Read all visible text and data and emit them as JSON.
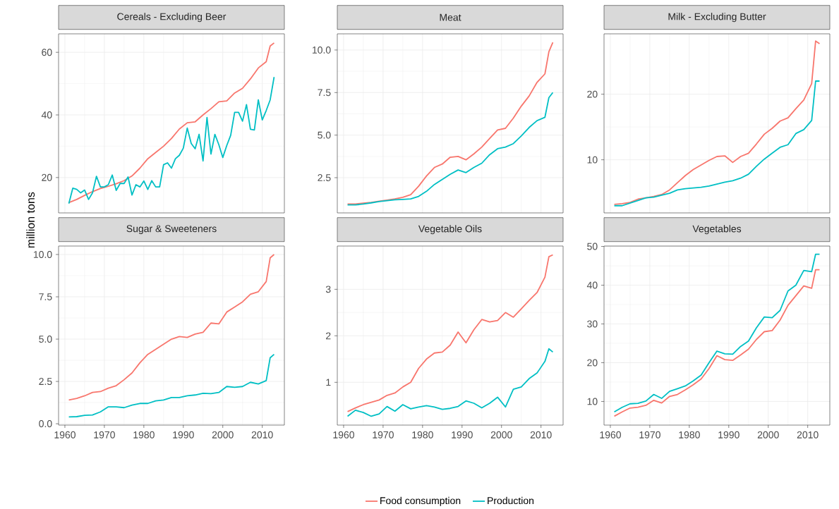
{
  "chart_data": [
    {
      "type": "line",
      "title": "Cereals - Excluding Beer",
      "ylabel": "million tons",
      "x": [
        1961,
        1963,
        1965,
        1967,
        1969,
        1971,
        1973,
        1975,
        1977,
        1979,
        1981,
        1983,
        1985,
        1987,
        1989,
        1991,
        1993,
        1995,
        1997,
        1999,
        2001,
        2003,
        2005,
        2007,
        2009,
        2011,
        2012,
        2013
      ],
      "xlim": [
        1958.4,
        2015.6
      ],
      "xticks": [
        1960,
        1970,
        1980,
        1990,
        2000,
        2010
      ],
      "ylim": [
        8.7,
        65.9
      ],
      "yticks": [
        20,
        40,
        60
      ],
      "grid": true,
      "tick_labels": "y",
      "series": [
        {
          "color": "#F8766D",
          "values": [
            12,
            13,
            14.3,
            15.5,
            16.5,
            17.2,
            18,
            19,
            20.5,
            23,
            26,
            28,
            30,
            32.5,
            35.5,
            37.5,
            37.8,
            40,
            42,
            44.2,
            44.5,
            47,
            48.5,
            51.5,
            55,
            57,
            62,
            63
          ]
        },
        {
          "color": "#00BFC4",
          "x": [
            1961,
            1962,
            1963,
            1964,
            1965,
            1966,
            1967,
            1968,
            1969,
            1970,
            1971,
            1972,
            1973,
            1974,
            1975,
            1976,
            1977,
            1978,
            1979,
            1980,
            1981,
            1982,
            1983,
            1984,
            1985,
            1986,
            1987,
            1988,
            1989,
            1990,
            1991,
            1992,
            1993,
            1994,
            1995,
            1996,
            1997,
            1998,
            1999,
            2000,
            2001,
            2002,
            2003,
            2004,
            2005,
            2006,
            2007,
            2008,
            2009,
            2010,
            2011,
            2012,
            2013
          ],
          "values": [
            11.7,
            16.6,
            16.2,
            15.1,
            16,
            13,
            15.1,
            20.4,
            17,
            17,
            17.7,
            20.8,
            15.9,
            18.1,
            18.1,
            20.2,
            14.4,
            17.7,
            17,
            18.9,
            16.2,
            19,
            17,
            17,
            24.1,
            24.7,
            23,
            26,
            27.1,
            29.4,
            35.8,
            30.9,
            29.2,
            33.8,
            25.3,
            39.2,
            27.5,
            33.8,
            30.5,
            26.4,
            30.2,
            33.5,
            40.8,
            40.8,
            38,
            43.3,
            35.4,
            35.2,
            44.8,
            38.4,
            41.4,
            44.8,
            52.1
          ]
        }
      ]
    },
    {
      "type": "line",
      "title": "Meat",
      "x": [
        1961,
        1963,
        1965,
        1967,
        1969,
        1971,
        1973,
        1975,
        1977,
        1979,
        1981,
        1983,
        1985,
        1987,
        1989,
        1991,
        1993,
        1995,
        1997,
        1999,
        2001,
        2003,
        2005,
        2007,
        2009,
        2011,
        2012,
        2013
      ],
      "xlim": [
        1958.4,
        2015.6
      ],
      "xticks": [
        1960,
        1970,
        1980,
        1990,
        2000,
        2010
      ],
      "ylim": [
        0.43,
        10.95
      ],
      "yticks": [
        2.5,
        {
          "value": 5,
          "label": "5.0"
        },
        7.5,
        {
          "value": 10,
          "label": "10.0"
        }
      ],
      "grid": true,
      "tick_labels": "y",
      "series": [
        {
          "color": "#F8766D",
          "values": [
            0.95,
            0.95,
            1.0,
            1.05,
            1.12,
            1.18,
            1.25,
            1.35,
            1.5,
            2.0,
            2.6,
            3.1,
            3.3,
            3.7,
            3.75,
            3.55,
            3.9,
            4.3,
            4.8,
            5.3,
            5.4,
            6.0,
            6.7,
            7.3,
            8.1,
            8.6,
            9.9,
            10.45
          ]
        },
        {
          "color": "#00BFC4",
          "values": [
            0.9,
            0.9,
            0.95,
            1.02,
            1.1,
            1.15,
            1.2,
            1.22,
            1.25,
            1.4,
            1.7,
            2.1,
            2.4,
            2.7,
            2.95,
            2.8,
            3.1,
            3.35,
            3.85,
            4.2,
            4.3,
            4.5,
            4.95,
            5.45,
            5.85,
            6.05,
            7.2,
            7.5
          ]
        }
      ]
    },
    {
      "type": "line",
      "title": "Milk - Excluding Butter",
      "x": [
        1961,
        1963,
        1965,
        1967,
        1969,
        1971,
        1973,
        1975,
        1977,
        1979,
        1981,
        1983,
        1985,
        1987,
        1989,
        1991,
        1993,
        1995,
        1997,
        1999,
        2001,
        2003,
        2005,
        2007,
        2009,
        2011,
        2012,
        2013
      ],
      "xlim": [
        1958.4,
        2015.6
      ],
      "xticks": [
        1960,
        1970,
        1980,
        1990,
        2000,
        2010
      ],
      "ylim": [
        1.9,
        29.2
      ],
      "yticks": [
        10,
        20
      ],
      "grid": true,
      "tick_labels": "y",
      "series": [
        {
          "color": "#F8766D",
          "values": [
            3.2,
            3.3,
            3.5,
            4.0,
            4.2,
            4.4,
            4.7,
            5.4,
            6.5,
            7.6,
            8.5,
            9.2,
            9.9,
            10.5,
            10.6,
            9.6,
            10.5,
            11,
            12.4,
            13.9,
            14.8,
            15.9,
            16.4,
            17.8,
            19.1,
            21.6,
            28.1,
            27.7
          ]
        },
        {
          "color": "#00BFC4",
          "values": [
            3.0,
            3.0,
            3.4,
            3.8,
            4.2,
            4.3,
            4.6,
            4.9,
            5.4,
            5.6,
            5.7,
            5.8,
            6.0,
            6.3,
            6.6,
            6.8,
            7.2,
            7.8,
            9.0,
            10.1,
            11.0,
            11.9,
            12.3,
            14.0,
            14.6,
            16.0,
            22.0,
            22.0
          ]
        }
      ]
    },
    {
      "type": "line",
      "title": "Sugar & Sweeteners",
      "x": [
        1961,
        1963,
        1965,
        1967,
        1969,
        1971,
        1973,
        1975,
        1977,
        1979,
        1981,
        1983,
        1985,
        1987,
        1989,
        1991,
        1993,
        1995,
        1997,
        1999,
        2001,
        2003,
        2005,
        2007,
        2009,
        2011,
        2012,
        2013
      ],
      "xlim": [
        1958.4,
        2015.6
      ],
      "xticks": [
        1960,
        1970,
        1980,
        1990,
        2000,
        2010
      ],
      "ylim": [
        -0.08,
        10.5
      ],
      "yticks": [
        {
          "value": 0,
          "label": "0.0"
        },
        2.5,
        {
          "value": 5,
          "label": "5.0"
        },
        7.5,
        {
          "value": 10,
          "label": "10.0"
        }
      ],
      "grid": true,
      "series": [
        {
          "color": "#F8766D",
          "values": [
            1.4,
            1.5,
            1.65,
            1.85,
            1.9,
            2.1,
            2.25,
            2.6,
            3.0,
            3.6,
            4.1,
            4.4,
            4.7,
            5.0,
            5.15,
            5.1,
            5.3,
            5.4,
            5.95,
            5.9,
            6.6,
            6.9,
            7.2,
            7.65,
            7.8,
            8.4,
            9.8,
            10.0
          ]
        },
        {
          "color": "#00BFC4",
          "values": [
            0.4,
            0.42,
            0.5,
            0.52,
            0.7,
            1.0,
            1.0,
            0.95,
            1.1,
            1.2,
            1.2,
            1.35,
            1.4,
            1.55,
            1.55,
            1.65,
            1.7,
            1.8,
            1.78,
            1.85,
            2.2,
            2.15,
            2.2,
            2.45,
            2.35,
            2.55,
            3.9,
            4.1
          ]
        }
      ]
    },
    {
      "type": "line",
      "title": "Vegetable Oils",
      "x": [
        1961,
        1963,
        1965,
        1967,
        1969,
        1971,
        1973,
        1975,
        1977,
        1979,
        1981,
        1983,
        1985,
        1987,
        1989,
        1991,
        1993,
        1995,
        1997,
        1999,
        2001,
        2003,
        2005,
        2007,
        2009,
        2011,
        2012,
        2013
      ],
      "xlim": [
        1958.4,
        2015.6
      ],
      "xticks": [
        1960,
        1970,
        1980,
        1990,
        2000,
        2010
      ],
      "ylim": [
        0.08,
        3.93
      ],
      "yticks": [
        1,
        2,
        3
      ],
      "grid": true,
      "legend": "bottom",
      "series": [
        {
          "name": "Food consumption",
          "color": "#F8766D",
          "values": [
            0.37,
            0.45,
            0.52,
            0.57,
            0.62,
            0.72,
            0.77,
            0.9,
            1.0,
            1.3,
            1.5,
            1.63,
            1.65,
            1.8,
            2.08,
            1.85,
            2.13,
            2.35,
            2.3,
            2.33,
            2.5,
            2.4,
            2.58,
            2.76,
            2.93,
            3.26,
            3.7,
            3.74
          ]
        },
        {
          "name": "Production",
          "color": "#00BFC4",
          "values": [
            0.27,
            0.4,
            0.35,
            0.27,
            0.32,
            0.48,
            0.38,
            0.52,
            0.43,
            0.47,
            0.5,
            0.47,
            0.42,
            0.44,
            0.48,
            0.6,
            0.55,
            0.45,
            0.55,
            0.68,
            0.47,
            0.85,
            0.9,
            1.08,
            1.2,
            1.45,
            1.72,
            1.65
          ]
        }
      ]
    },
    {
      "type": "line",
      "title": "Vegetables",
      "x": [
        1961,
        1963,
        1965,
        1967,
        1969,
        1971,
        1973,
        1975,
        1977,
        1979,
        1981,
        1983,
        1985,
        1987,
        1989,
        1991,
        1993,
        1995,
        1997,
        1999,
        2001,
        2003,
        2005,
        2007,
        2009,
        2011,
        2012,
        2013
      ],
      "xlim": [
        1958.4,
        2015.6
      ],
      "xticks": [
        1960,
        1970,
        1980,
        1990,
        2000,
        2010
      ],
      "ylim": [
        3.9,
        50.1
      ],
      "yticks": [
        10,
        20,
        30,
        40,
        50
      ],
      "grid": true,
      "series": [
        {
          "color": "#F8766D",
          "values": [
            6.2,
            7.3,
            8.3,
            8.5,
            9.0,
            10.3,
            9.6,
            11.3,
            11.8,
            13.0,
            14.3,
            15.8,
            18.5,
            21.8,
            20.8,
            20.6,
            22.0,
            23.5,
            26.0,
            28.0,
            28.3,
            31.0,
            34.8,
            37.3,
            39.8,
            39.2,
            44.0,
            44.0
          ]
        },
        {
          "color": "#00BFC4",
          "values": [
            7.3,
            8.5,
            9.4,
            9.5,
            10.1,
            11.8,
            10.8,
            12.6,
            13.3,
            14.0,
            15.3,
            16.8,
            20.0,
            23.0,
            22.3,
            22.2,
            24.2,
            25.6,
            29.0,
            31.8,
            31.6,
            33.5,
            38.5,
            40.0,
            43.8,
            43.5,
            48.0,
            48.0
          ]
        }
      ]
    }
  ]
}
